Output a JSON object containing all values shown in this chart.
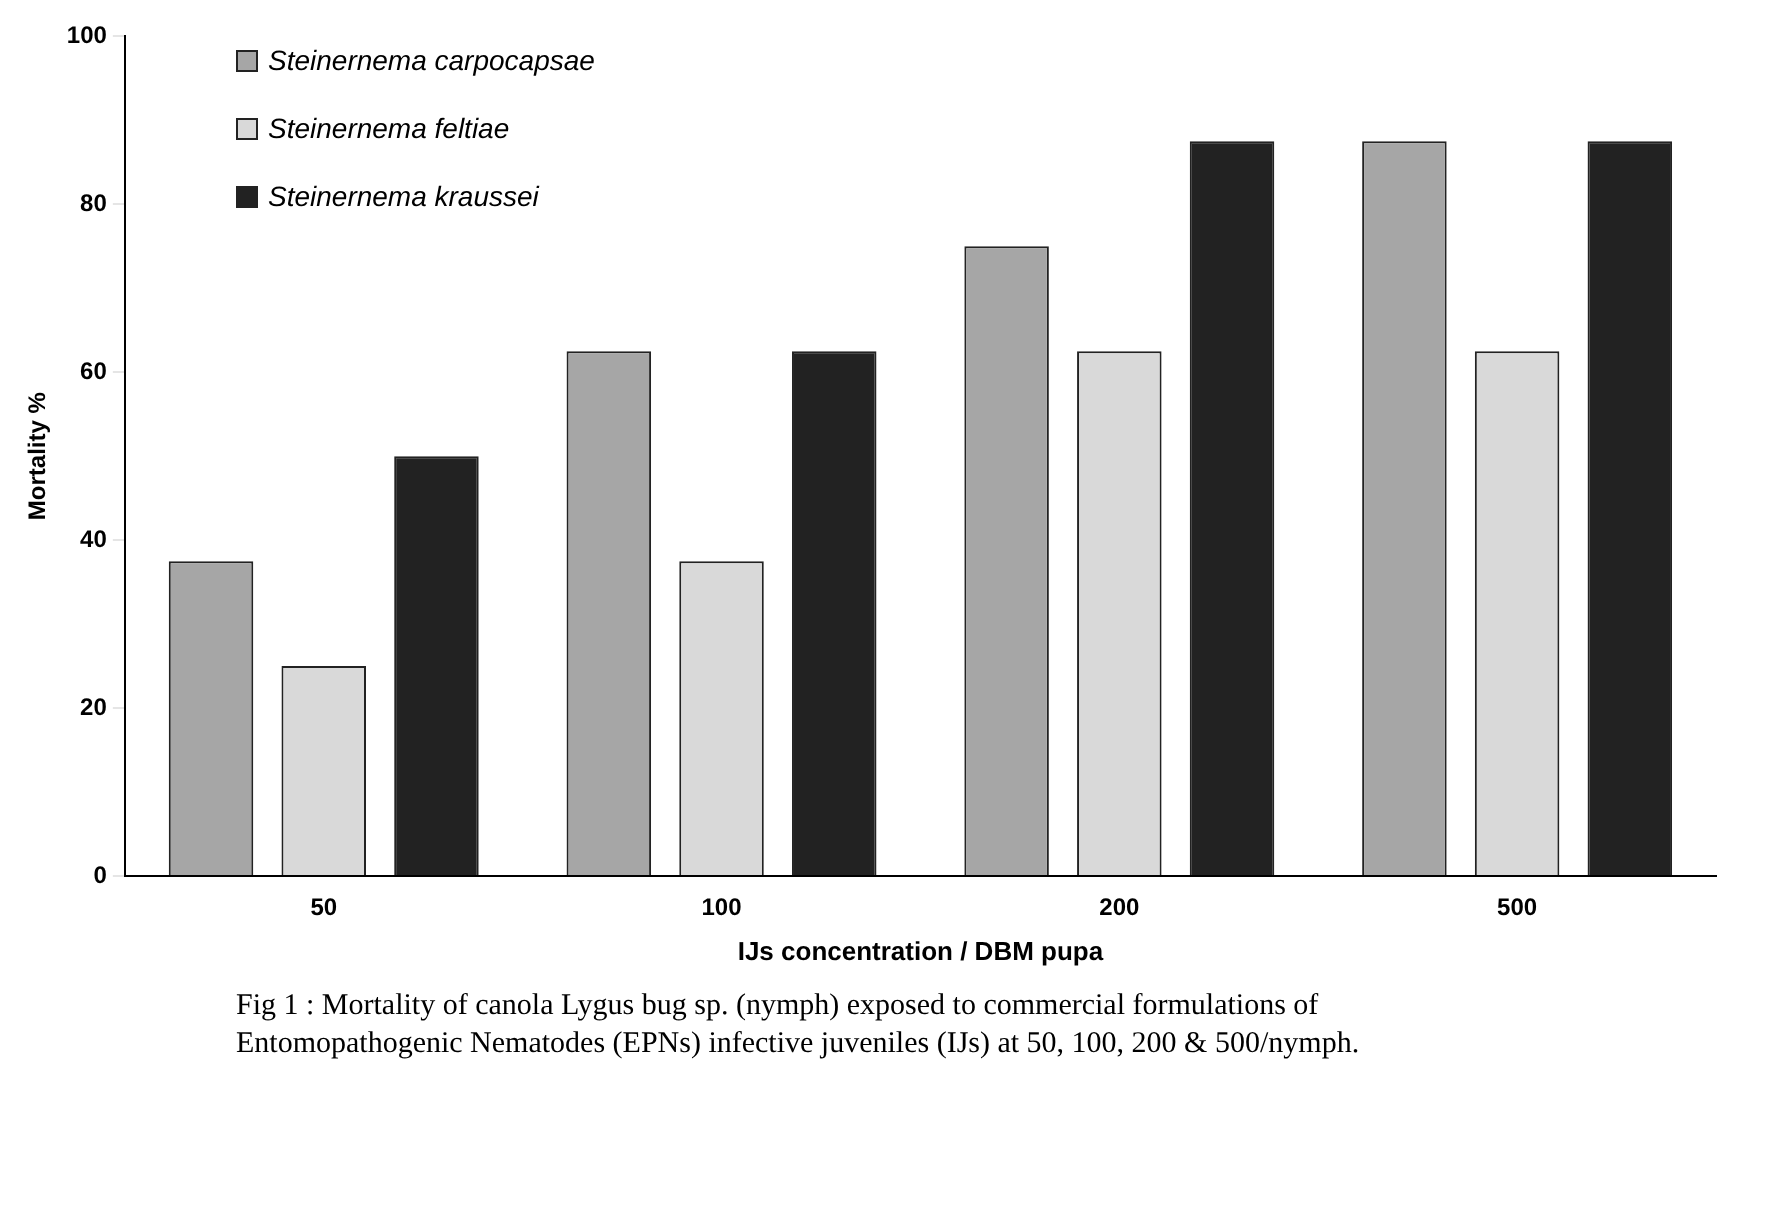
{
  "chart_data": {
    "type": "bar",
    "xlabel": "IJs concentration / DBM pupa",
    "ylabel": "Mortality %",
    "categories": [
      "50",
      "100",
      "200",
      "500"
    ],
    "series": [
      {
        "name": "Steinernema carpocapsae",
        "color": "#a6a6a6",
        "values": [
          37.5,
          62.5,
          75,
          87.5
        ]
      },
      {
        "name": "Steinernema feltiae",
        "color": "#d9d9d9",
        "values": [
          25,
          37.5,
          62.5,
          62.5
        ]
      },
      {
        "name": "Steinernema kraussei",
        "color": "#222222",
        "values": [
          50,
          62.5,
          87.5,
          87.5
        ]
      }
    ],
    "ylim": [
      0,
      100
    ],
    "yticks": [
      0,
      20,
      40,
      60,
      80,
      100
    ],
    "grid": false,
    "legend": "top left",
    "annotations": [
      "Fig 1 : Mortality of canola Lygus bug sp. (nymph) exposed to commercial formulations of Entomopathogenic Nematodes (EPNs) infective juveniles (IJs) at 50, 100, 200 & 500/nymph."
    ]
  }
}
